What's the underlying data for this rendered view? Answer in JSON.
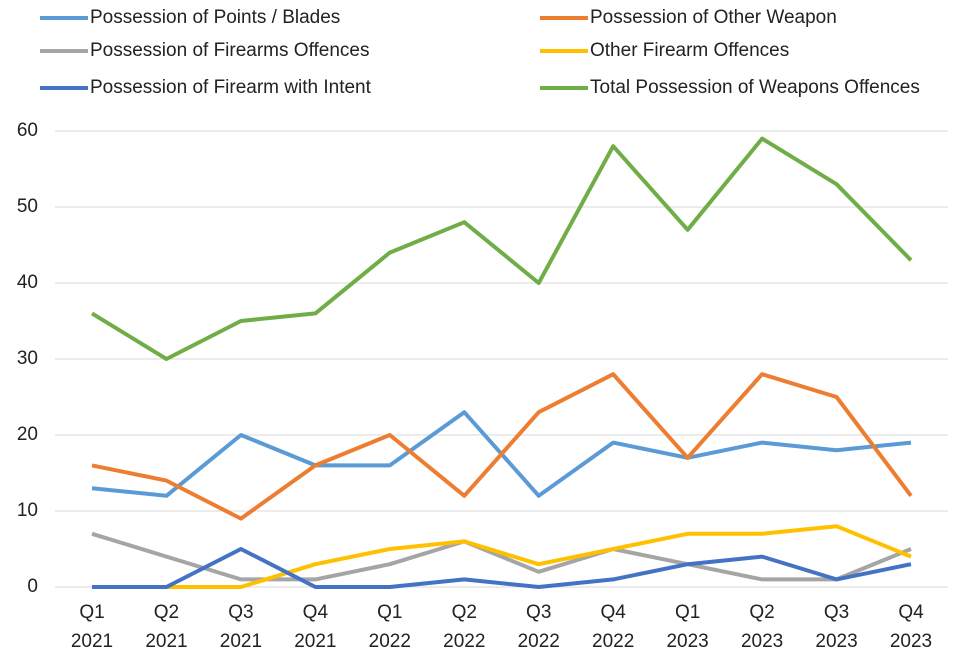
{
  "chart_data": {
    "type": "line",
    "categories": [
      "Q1 2021",
      "Q2 2021",
      "Q3 2021",
      "Q4 2021",
      "Q1 2022",
      "Q2 2022",
      "Q3 2022",
      "Q4 2022",
      "Q1 2023",
      "Q2 2023",
      "Q3 2023",
      "Q4 2023"
    ],
    "series": [
      {
        "name": "Possession of Points / Blades",
        "color": "#5b9bd5",
        "values": [
          13,
          12,
          20,
          16,
          16,
          23,
          12,
          19,
          17,
          19,
          18,
          19
        ]
      },
      {
        "name": "Possession of Other Weapon",
        "color": "#ed7d31",
        "values": [
          16,
          14,
          9,
          16,
          20,
          12,
          23,
          28,
          17,
          28,
          25,
          12
        ]
      },
      {
        "name": "Possession of Firearms Offences",
        "color": "#a5a5a5",
        "values": [
          7,
          4,
          1,
          1,
          3,
          6,
          2,
          5,
          3,
          1,
          1,
          5
        ]
      },
      {
        "name": "Other Firearm Offences",
        "color": "#ffc000",
        "values": [
          null,
          0,
          0,
          3,
          5,
          6,
          3,
          5,
          7,
          7,
          8,
          4
        ]
      },
      {
        "name": "Possession of Firearm with Intent",
        "color": "#4472c4",
        "values": [
          0,
          0,
          5,
          0,
          0,
          1,
          0,
          1,
          3,
          4,
          1,
          3
        ]
      },
      {
        "name": "Total Possession of Weapons Offences",
        "color": "#70ad47",
        "values": [
          36,
          30,
          35,
          36,
          44,
          48,
          40,
          58,
          47,
          59,
          53,
          43
        ]
      }
    ],
    "ylim": [
      0,
      60
    ],
    "yticks": [
      0,
      10,
      20,
      30,
      40,
      50,
      60
    ],
    "grid": true,
    "legend": "top"
  }
}
